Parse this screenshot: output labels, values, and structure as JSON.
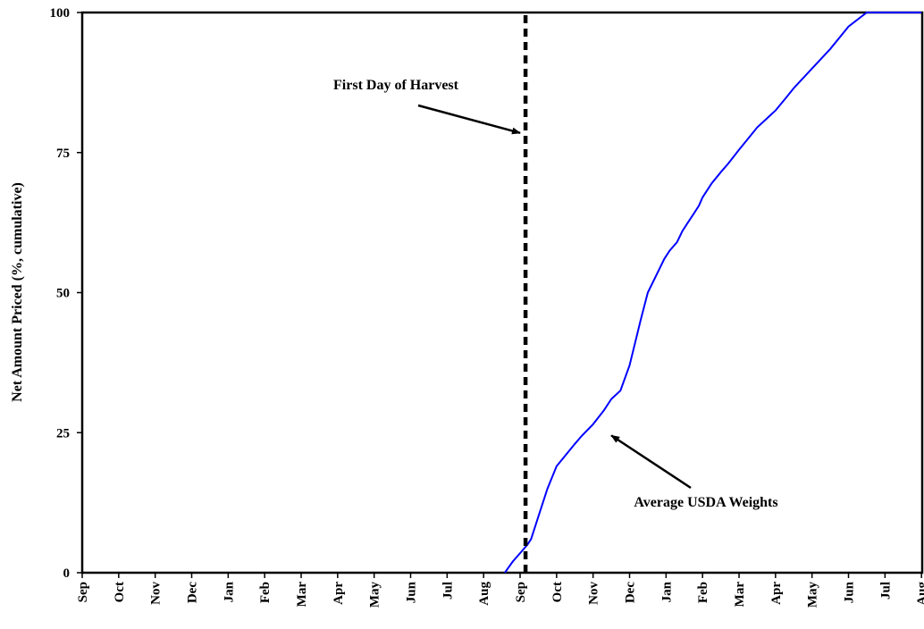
{
  "chart_data": {
    "type": "line",
    "title": "",
    "xlabel": "",
    "ylabel": "Net Amount Priced (%, cumulative)",
    "ylim": [
      0,
      100
    ],
    "yticks": [
      0,
      25,
      50,
      75,
      100
    ],
    "grid": false,
    "x_tick_labels": [
      "Sep",
      "Oct",
      "Nov",
      "Dec",
      "Jan",
      "Feb",
      "Mar",
      "Apr",
      "May",
      "Jun",
      "Jul",
      "Aug",
      "Sep",
      "Oct",
      "Nov",
      "Dec",
      "Jan",
      "Feb",
      "Mar",
      "Apr",
      "May",
      "Jun",
      "Jul",
      "Aug"
    ],
    "x_unit": "month index (0 = first Sep)",
    "series": [
      {
        "name": "Average USDA Weights",
        "color": "#0000ff",
        "x": [
          11.58,
          11.8,
          12.0,
          12.2,
          12.3,
          12.5,
          12.75,
          13.0,
          13.25,
          13.5,
          13.7,
          14.0,
          14.3,
          14.5,
          14.75,
          15.0,
          15.3,
          15.5,
          15.8,
          15.95,
          16.1,
          16.3,
          16.45,
          16.6,
          16.75,
          16.9,
          17.0,
          17.25,
          17.5,
          17.7,
          18.0,
          18.25,
          18.5,
          18.75,
          19.0,
          19.25,
          19.5,
          20.0,
          20.5,
          21.0,
          21.5,
          22.0,
          22.5,
          23.0
        ],
        "y": [
          0,
          2,
          3.5,
          5,
          6,
          10,
          15,
          19,
          21,
          23,
          24.5,
          26.5,
          29,
          31,
          32.5,
          37,
          45,
          50,
          54,
          56,
          57.5,
          59,
          61,
          62.5,
          64,
          65.5,
          67,
          69.5,
          71.5,
          73,
          75.5,
          77.5,
          79.5,
          81,
          82.5,
          84.5,
          86.5,
          90,
          93.5,
          97.5,
          100,
          100,
          100,
          100
        ]
      },
      {
        "name": "First Day of Harvest",
        "color": "#000000",
        "style": "dashed",
        "x": [
          12.15,
          12.15
        ],
        "y": [
          0,
          100
        ]
      }
    ],
    "annotations": [
      {
        "text": "First Day of Harvest",
        "target_x": 12.0,
        "target_y": 78.5
      },
      {
        "text": "Average USDA Weights",
        "target_x": 14.5,
        "target_y": 24.5
      }
    ]
  }
}
